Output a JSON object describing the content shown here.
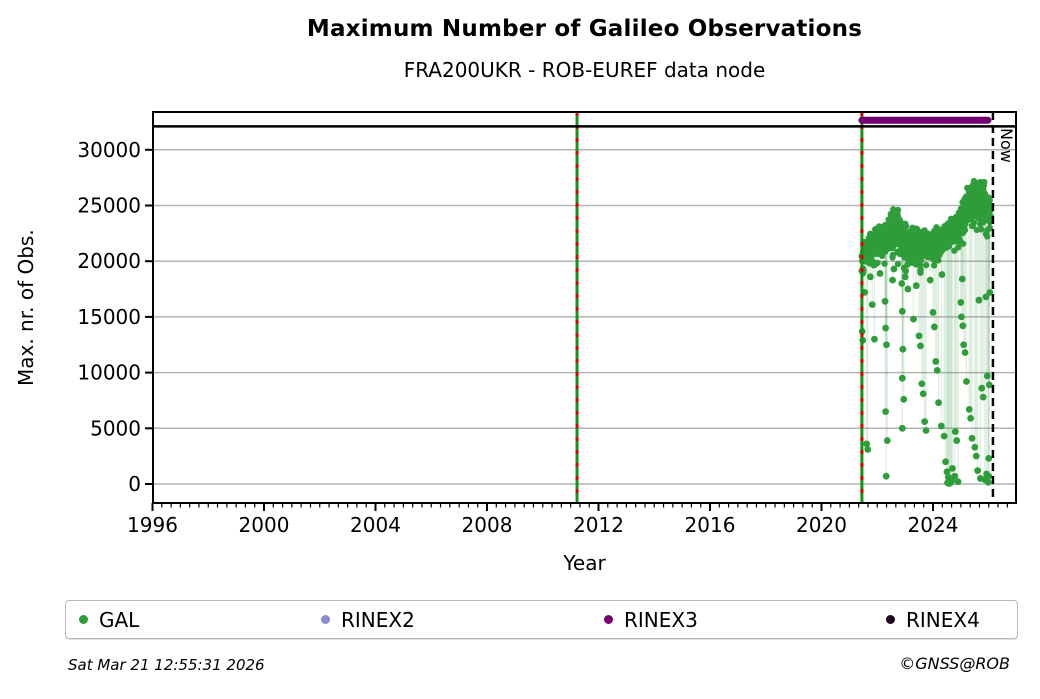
{
  "header": {
    "title": "Maximum Number of Galileo Observations",
    "subtitle": "FRA200UKR - ROB-EUREF data node"
  },
  "footer": {
    "timestamp": "Sat Mar 21 12:55:31 2026",
    "credit": "©GNSS@ROB"
  },
  "legend": [
    {
      "label": "GAL",
      "color": "#2e9d3a"
    },
    {
      "label": "RINEX2",
      "color": "#8a8ace"
    },
    {
      "label": "RINEX3",
      "color": "#720072"
    },
    {
      "label": "RINEX4",
      "color": "#1d051d"
    }
  ],
  "chart_data": {
    "type": "scatter",
    "title": "Maximum Number of Galileo Observations",
    "subtitle": "FRA200UKR - ROB-EUREF data node",
    "xlabel": "Year",
    "ylabel": "Max. nr. of Obs.",
    "xlim": [
      1996,
      2027
    ],
    "ylim": [
      0,
      30000
    ],
    "xticks": [
      1996,
      2000,
      2004,
      2008,
      2012,
      2016,
      2020,
      2024
    ],
    "yticks": [
      0,
      5000,
      10000,
      15000,
      20000,
      25000,
      30000
    ],
    "grid": "horizontal",
    "legend_position": "bottom",
    "now_line": {
      "year": 2026.15,
      "label": "Now"
    },
    "event_lines": [
      {
        "year": 2011.23
      },
      {
        "year": 2021.45
      }
    ],
    "top_divider_value": 32100,
    "rinex3_bar": {
      "start": 2021.45,
      "end": 2025.97,
      "value": 32650
    },
    "gal_band_envelope": [
      [
        2021.45,
        19300,
        21500
      ],
      [
        2021.55,
        19600,
        21900
      ],
      [
        2021.7,
        20100,
        22300
      ],
      [
        2021.85,
        20300,
        22800
      ],
      [
        2022.0,
        20300,
        23300
      ],
      [
        2022.15,
        20700,
        23300
      ],
      [
        2022.3,
        20500,
        23700
      ],
      [
        2022.45,
        20600,
        24300
      ],
      [
        2022.6,
        20700,
        24900
      ],
      [
        2022.75,
        20500,
        24900
      ],
      [
        2022.9,
        20200,
        24300
      ],
      [
        2023.05,
        19800,
        23600
      ],
      [
        2023.2,
        19700,
        23400
      ],
      [
        2023.35,
        19900,
        23100
      ],
      [
        2023.5,
        19700,
        22900
      ],
      [
        2023.65,
        19800,
        23000
      ],
      [
        2023.8,
        20000,
        23100
      ],
      [
        2023.95,
        19900,
        22900
      ],
      [
        2024.1,
        20200,
        23100
      ],
      [
        2024.25,
        20500,
        23300
      ],
      [
        2024.4,
        20800,
        23600
      ],
      [
        2024.55,
        21000,
        23900
      ],
      [
        2024.7,
        21200,
        24100
      ],
      [
        2024.85,
        21400,
        24400
      ],
      [
        2025.0,
        21700,
        24800
      ],
      [
        2025.1,
        22300,
        25600
      ],
      [
        2025.25,
        22900,
        26700
      ],
      [
        2025.4,
        23400,
        27300
      ],
      [
        2025.55,
        23700,
        27600
      ],
      [
        2025.7,
        23700,
        27600
      ],
      [
        2025.85,
        23400,
        27200
      ],
      [
        2025.97,
        22900,
        26300
      ],
      [
        2026.05,
        22600,
        25800
      ]
    ],
    "gal_outliers": [
      [
        2021.46,
        13700
      ],
      [
        2021.48,
        12900
      ],
      [
        2021.55,
        17200
      ],
      [
        2021.62,
        3600
      ],
      [
        2021.66,
        3100
      ],
      [
        2021.75,
        18600
      ],
      [
        2021.82,
        16100
      ],
      [
        2021.9,
        13000
      ],
      [
        2022.1,
        18900
      ],
      [
        2022.28,
        16400
      ],
      [
        2022.3,
        14000
      ],
      [
        2022.33,
        12500
      ],
      [
        2022.3,
        6500
      ],
      [
        2022.36,
        3900
      ],
      [
        2022.32,
        700
      ],
      [
        2022.55,
        18300
      ],
      [
        2022.6,
        19300
      ],
      [
        2022.88,
        18000
      ],
      [
        2022.9,
        15500
      ],
      [
        2022.92,
        12100
      ],
      [
        2022.9,
        9500
      ],
      [
        2022.95,
        7600
      ],
      [
        2022.9,
        5000
      ],
      [
        2023.0,
        18600
      ],
      [
        2023.1,
        17500
      ],
      [
        2023.3,
        14800
      ],
      [
        2023.4,
        17800
      ],
      [
        2023.5,
        13300
      ],
      [
        2023.55,
        12400
      ],
      [
        2023.6,
        9000
      ],
      [
        2023.65,
        8100
      ],
      [
        2023.7,
        5600
      ],
      [
        2023.75,
        4800
      ],
      [
        2023.9,
        18300
      ],
      [
        2024.0,
        15400
      ],
      [
        2024.05,
        14100
      ],
      [
        2024.1,
        11000
      ],
      [
        2024.15,
        10200
      ],
      [
        2024.2,
        7300
      ],
      [
        2024.3,
        5200
      ],
      [
        2024.32,
        18800
      ],
      [
        2024.4,
        4300
      ],
      [
        2024.45,
        2000
      ],
      [
        2024.5,
        1100
      ],
      [
        2024.52,
        100
      ],
      [
        2024.55,
        600
      ],
      [
        2024.58,
        50
      ],
      [
        2024.6,
        250
      ],
      [
        2024.65,
        150
      ],
      [
        2024.66,
        300
      ],
      [
        2024.7,
        1400
      ],
      [
        2024.78,
        700
      ],
      [
        2024.8,
        4700
      ],
      [
        2024.85,
        3900
      ],
      [
        2024.9,
        200
      ],
      [
        2025.0,
        16300
      ],
      [
        2025.02,
        15000
      ],
      [
        2025.05,
        18400
      ],
      [
        2025.07,
        14200
      ],
      [
        2025.1,
        12500
      ],
      [
        2025.15,
        11800
      ],
      [
        2025.2,
        9200
      ],
      [
        2025.3,
        6700
      ],
      [
        2025.35,
        5900
      ],
      [
        2025.4,
        4100
      ],
      [
        2025.5,
        3300
      ],
      [
        2025.55,
        2500
      ],
      [
        2025.6,
        1200
      ],
      [
        2025.65,
        16500
      ],
      [
        2025.7,
        500
      ],
      [
        2025.75,
        8600
      ],
      [
        2025.8,
        7800
      ],
      [
        2025.86,
        400
      ],
      [
        2025.9,
        16800
      ],
      [
        2025.92,
        900
      ],
      [
        2025.95,
        9700
      ],
      [
        2025.98,
        150
      ],
      [
        2026.0,
        2300
      ],
      [
        2026.0,
        700
      ],
      [
        2026.02,
        8900
      ],
      [
        2026.04,
        17200
      ]
    ],
    "colors": {
      "gal": "#2e9d3a",
      "rinex2": "#8a8ace",
      "rinex3": "#720072",
      "rinex4": "#1d051d",
      "event_line_green": "#149414",
      "event_line_red": "#e00000",
      "grid": "#b3b3b3",
      "stem": "rgba(70,158,82,0.17)",
      "frame": "#000000"
    }
  }
}
